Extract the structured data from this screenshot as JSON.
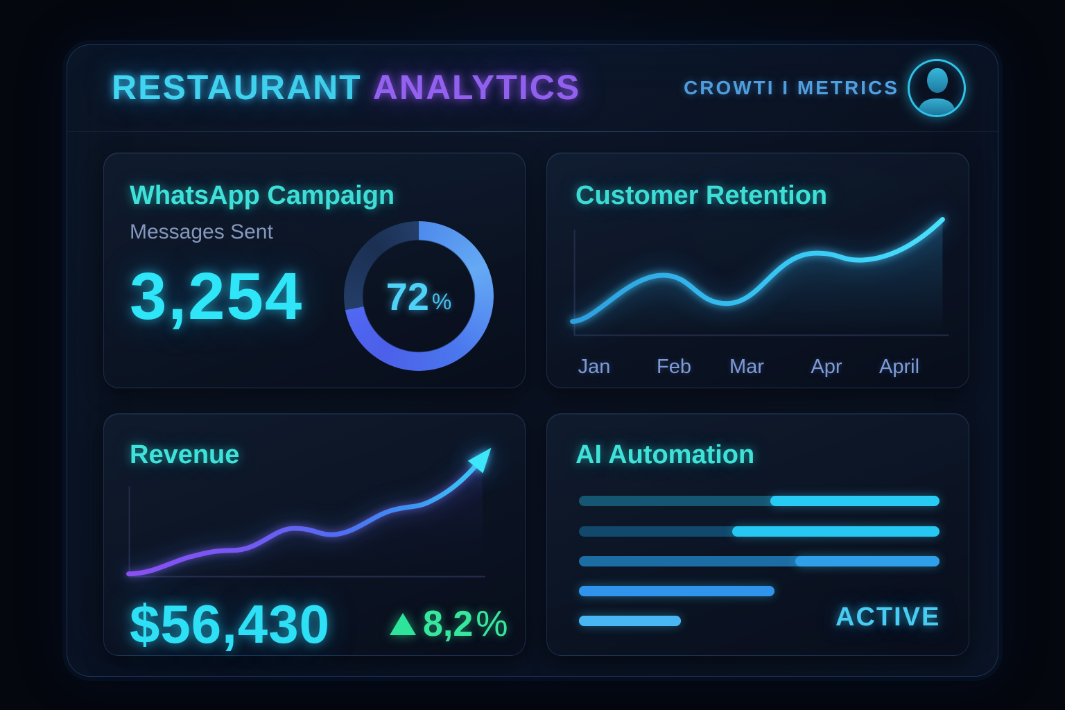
{
  "header": {
    "title_primary": "RESTAURANT",
    "title_secondary": "ANALYTICS",
    "right_label": "CROWTI I METRICS"
  },
  "cards": {
    "whatsapp": {
      "title": "WhatsApp Campaign",
      "subtitle": "Messages Sent",
      "value": "3,254",
      "donut": {
        "percent": 72,
        "label": "72",
        "unit": "%"
      }
    },
    "retention": {
      "title": "Customer Retention",
      "x_labels": [
        "Jan",
        "Feb",
        "Mar",
        "Apr",
        "April"
      ]
    },
    "revenue": {
      "title": "Revenue",
      "value": "$56,430",
      "delta": {
        "direction": "up",
        "label": "8,2",
        "unit": "%"
      }
    },
    "automation": {
      "title": "AI Automation",
      "status": "ACTIVE",
      "bars": [
        {
          "width_pct": 100,
          "bright_start_pct": 53,
          "dim_color": "#155672",
          "bright_color": "#28cbf4"
        },
        {
          "width_pct": 100,
          "bright_start_pct": 42.5,
          "dim_color": "#11486b",
          "bright_color": "#26c8f3"
        },
        {
          "width_pct": 100,
          "bright_start_pct": 60,
          "dim_color": "#1d6da5",
          "bright_color": "#2f9fe9"
        },
        {
          "width_pct": 54.2,
          "bright_start_pct": 0,
          "dim_color": "#2b7de0",
          "bright_color": "#3093ec"
        },
        {
          "width_pct": 28.3,
          "bright_start_pct": 0,
          "dim_color": "#49b7f3",
          "bright_color": "#49b7f3"
        }
      ]
    }
  },
  "colors": {
    "accent_cyan": "#2ee6f7",
    "accent_teal": "#3fe2d9",
    "accent_purple": "#9d64fa",
    "accent_green": "#38e79e",
    "muted_label": "#8497bd",
    "tick_label": "#7e9bd6",
    "axis": "#242c4c",
    "donut_remainder": "#233e68"
  },
  "icons": {
    "avatar": "user-avatar-icon",
    "delta_up": "triangle-up-icon",
    "revenue_arrow": "trend-arrow-icon"
  },
  "chart_data": [
    {
      "type": "pie",
      "title": "WhatsApp Campaign",
      "metric": "Messages Sent",
      "value": 3254,
      "percent_complete": 72,
      "center_label": "72%",
      "note": "donut/progress ring; bright segment 72%, dark remainder 28%"
    },
    {
      "type": "line",
      "title": "Customer Retention",
      "x": [
        "Jan",
        "Feb",
        "Mar",
        "Apr",
        "April"
      ],
      "y_estimated_pct": [
        5,
        45,
        25,
        68,
        85
      ],
      "ylim": [
        0,
        100
      ],
      "note": "no y-axis labels shown; values estimated from curve height, wavy rising trend ending at top right"
    },
    {
      "type": "line",
      "title": "Revenue",
      "x": [],
      "y_estimated_pct": [
        3,
        15,
        16,
        30,
        28,
        42,
        45,
        70,
        100
      ],
      "value_label": "$56,430",
      "delta_label": "8,2%",
      "delta_direction": "up",
      "note": "purple-to-blue gradient line rising to cyan arrow, no tick labels shown"
    },
    {
      "type": "bar",
      "title": "AI Automation",
      "orientation": "horizontal",
      "status": "ACTIVE",
      "bars_length_pct": [
        100,
        100,
        100,
        54.2,
        28.3
      ],
      "bars_highlight_from_pct": [
        53,
        42.5,
        60,
        0,
        0
      ],
      "note": "5 pill bars; first three full-width with bright cyan right segment"
    }
  ]
}
